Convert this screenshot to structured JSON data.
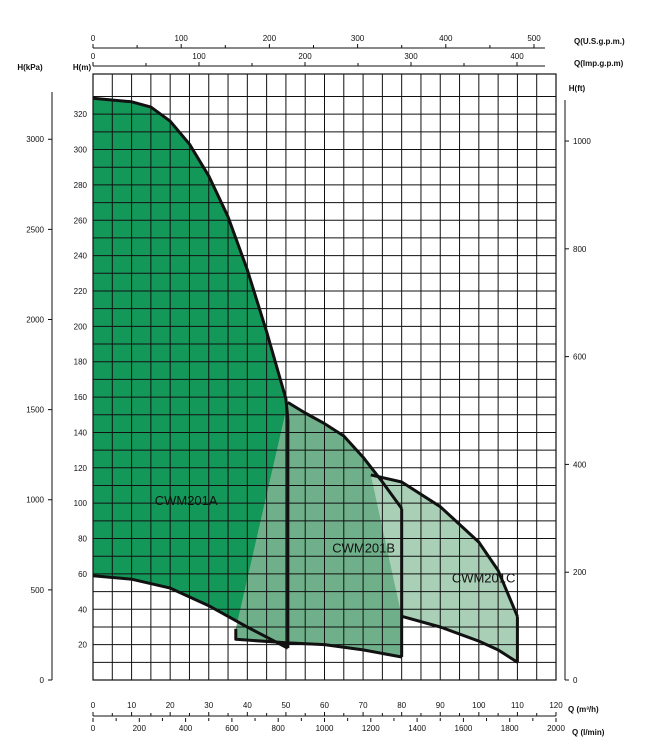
{
  "chart_data": {
    "type": "area",
    "xlabel": "Q (m³/h)",
    "ylabel": "H(m)",
    "x_axis": {
      "label": "Q (m³/h)",
      "ticks": [
        0,
        10,
        20,
        30,
        40,
        50,
        60,
        70,
        80,
        90,
        100,
        110,
        120
      ]
    },
    "y_axis": {
      "label": "H(m)",
      "ticks": [
        20,
        40,
        60,
        80,
        100,
        120,
        140,
        160,
        180,
        200,
        220,
        240,
        260,
        280,
        300,
        320
      ]
    },
    "secondary_axes": {
      "lmin": {
        "label": "Q (l/min)",
        "ticks": [
          0,
          200,
          400,
          600,
          800,
          1000,
          1200,
          1400,
          1600,
          1800,
          2000
        ]
      },
      "usgpm": {
        "label": "Q(U.S.g.p.m.)",
        "ticks": [
          0,
          100,
          200,
          300,
          400,
          500
        ]
      },
      "impgpm": {
        "label": "Q(Imp.g.p.m)",
        "ticks": [
          0,
          100,
          200,
          300,
          400
        ]
      },
      "kpa": {
        "label": "H(kPa)",
        "ticks": [
          0,
          500,
          1000,
          1500,
          2000,
          2500,
          3000
        ]
      },
      "ft": {
        "label": "H(ft)",
        "ticks": [
          0,
          200,
          400,
          600,
          800,
          1000
        ]
      }
    },
    "xlim": [
      0,
      120
    ],
    "ylim": [
      0,
      330
    ],
    "grid": true,
    "regions": [
      {
        "name": "CWM201A",
        "color": "#14985a",
        "upper": [
          [
            0,
            329
          ],
          [
            10,
            327
          ],
          [
            15,
            324
          ],
          [
            20,
            316
          ],
          [
            25,
            303
          ],
          [
            30,
            285
          ],
          [
            35,
            262
          ],
          [
            40,
            232
          ],
          [
            45,
            197
          ],
          [
            50,
            159
          ],
          [
            50.5,
            148
          ]
        ],
        "lower": [
          [
            0,
            59
          ],
          [
            10,
            57
          ],
          [
            20,
            52
          ],
          [
            30,
            42
          ],
          [
            40,
            30
          ],
          [
            50.5,
            18
          ]
        ]
      },
      {
        "name": "CWM201B",
        "color": "#6fb08a",
        "upper": [
          [
            50.5,
            157
          ],
          [
            55,
            151
          ],
          [
            60,
            145
          ],
          [
            65,
            138
          ],
          [
            70,
            126
          ],
          [
            75,
            112
          ],
          [
            80,
            97
          ]
        ],
        "lower": [
          [
            37,
            29
          ],
          [
            37,
            23
          ],
          [
            50.5,
            21
          ],
          [
            60,
            20
          ],
          [
            70,
            17
          ],
          [
            80,
            13
          ]
        ]
      },
      {
        "name": "CWM201C",
        "color": "#a9cfb6",
        "upper": [
          [
            72,
            116
          ],
          [
            80,
            112
          ],
          [
            90,
            98
          ],
          [
            100,
            78
          ],
          [
            105,
            62
          ],
          [
            110,
            36
          ]
        ],
        "lower": [
          [
            80,
            36
          ],
          [
            90,
            30
          ],
          [
            100,
            22
          ],
          [
            105,
            17
          ],
          [
            110,
            10
          ]
        ]
      }
    ],
    "labels": [
      "CWM201A",
      "CWM201B",
      "CWM201C"
    ]
  }
}
